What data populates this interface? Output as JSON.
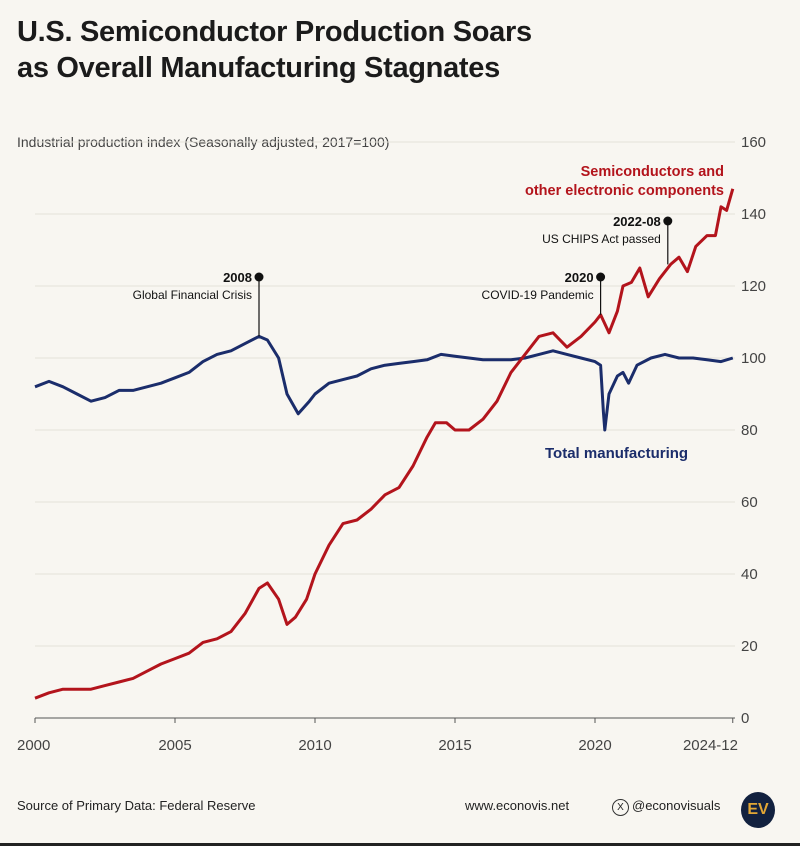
{
  "title_line1": "U.S. Semiconductor Production Soars",
  "title_line2": "as Overall Manufacturing Stagnates",
  "footer": {
    "source": "Source of Primary Data: Federal Reserve",
    "website": "www.econovis.net",
    "social_icon": "x-logo-icon",
    "handle": "@econovisuals",
    "logo": "EV"
  },
  "colors": {
    "semis": "#b3141c",
    "manufacturing": "#1b2d6b",
    "grid": "#e4e1d9",
    "background": "#f8f6f1"
  },
  "chart_data": {
    "type": "line",
    "ylabel": "Industrial production index (Seasonally adjusted, 2017=100)",
    "ylim": [
      0,
      160
    ],
    "yticks": [
      0,
      20,
      40,
      60,
      80,
      100,
      120,
      140,
      160
    ],
    "xlim": [
      2000,
      2025
    ],
    "xticks": [
      {
        "v": 2000,
        "label": "2000"
      },
      {
        "v": 2005,
        "label": "2005"
      },
      {
        "v": 2010,
        "label": "2010"
      },
      {
        "v": 2015,
        "label": "2015"
      },
      {
        "v": 2020,
        "label": "2020"
      },
      {
        "v": 2024.92,
        "label": "2024-12"
      }
    ],
    "grid": true,
    "series": [
      {
        "name": "Total manufacturing",
        "color": "#1b2d6b",
        "x": [
          2000,
          2000.5,
          2001,
          2001.5,
          2002,
          2002.5,
          2003,
          2003.5,
          2004,
          2004.5,
          2005,
          2005.5,
          2006,
          2006.5,
          2007,
          2007.5,
          2008,
          2008.3,
          2008.7,
          2009,
          2009.4,
          2009.8,
          2010,
          2010.5,
          2011,
          2011.5,
          2012,
          2012.5,
          2013,
          2013.5,
          2014,
          2014.5,
          2015,
          2015.5,
          2016,
          2016.5,
          2017,
          2017.5,
          2018,
          2018.5,
          2019,
          2019.5,
          2020,
          2020.2,
          2020.3,
          2020.35,
          2020.5,
          2020.8,
          2021,
          2021.2,
          2021.5,
          2022,
          2022.5,
          2023,
          2023.5,
          2024,
          2024.5,
          2024.92
        ],
        "y": [
          92,
          93.5,
          92,
          90,
          88,
          89,
          91,
          91,
          92,
          93,
          94.5,
          96,
          99,
          101,
          102,
          104,
          106,
          105,
          100,
          90,
          84.5,
          88,
          90,
          93,
          94,
          95,
          97,
          98,
          98.5,
          99,
          99.5,
          101,
          100.5,
          100,
          99.5,
          99.5,
          99.5,
          100,
          101,
          102,
          101,
          100,
          99,
          98,
          85,
          80,
          90,
          95,
          96,
          93,
          98,
          100,
          101,
          100,
          100,
          99.5,
          99,
          100
        ]
      },
      {
        "name": "Semiconductors and other electronic components",
        "color": "#b3141c",
        "x": [
          2000,
          2000.5,
          2001,
          2001.5,
          2002,
          2002.5,
          2003,
          2003.5,
          2004,
          2004.5,
          2005,
          2005.5,
          2006,
          2006.5,
          2007,
          2007.5,
          2008,
          2008.3,
          2008.7,
          2009,
          2009.3,
          2009.7,
          2010,
          2010.5,
          2011,
          2011.5,
          2012,
          2012.5,
          2013,
          2013.5,
          2014,
          2014.3,
          2014.7,
          2015,
          2015.5,
          2016,
          2016.5,
          2017,
          2017.5,
          2018,
          2018.5,
          2019,
          2019.5,
          2020,
          2020.2,
          2020.5,
          2020.8,
          2021,
          2021.3,
          2021.6,
          2021.9,
          2022.3,
          2022.7,
          2023,
          2023.3,
          2023.6,
          2024,
          2024.3,
          2024.5,
          2024.7,
          2024.92
        ],
        "y": [
          5.5,
          7,
          8,
          8,
          8,
          9,
          10,
          11,
          13,
          15,
          16.5,
          18,
          21,
          22,
          24,
          29,
          36,
          37.5,
          33,
          26,
          28,
          33,
          40,
          48,
          54,
          55,
          58,
          62,
          64,
          70,
          78,
          82,
          82,
          80,
          80,
          83,
          88,
          96,
          101,
          106,
          107,
          103,
          106,
          110,
          112,
          107,
          113,
          120,
          121,
          125,
          117,
          122,
          126,
          128,
          124,
          131,
          134,
          134,
          142,
          141,
          147
        ]
      }
    ],
    "annotations": [
      {
        "date": "2008",
        "label": "Global Financial Crisis",
        "x": 2008,
        "y": 106
      },
      {
        "date": "2020",
        "label": "COVID-19 Pandemic",
        "x": 2020.2,
        "y": 112
      },
      {
        "date": "2022-08",
        "label": "US CHIPS Act passed",
        "x": 2022.6,
        "y": 126
      }
    ],
    "series_labels": [
      "Semiconductors and",
      "other electronic components",
      "Total manufacturing"
    ]
  }
}
